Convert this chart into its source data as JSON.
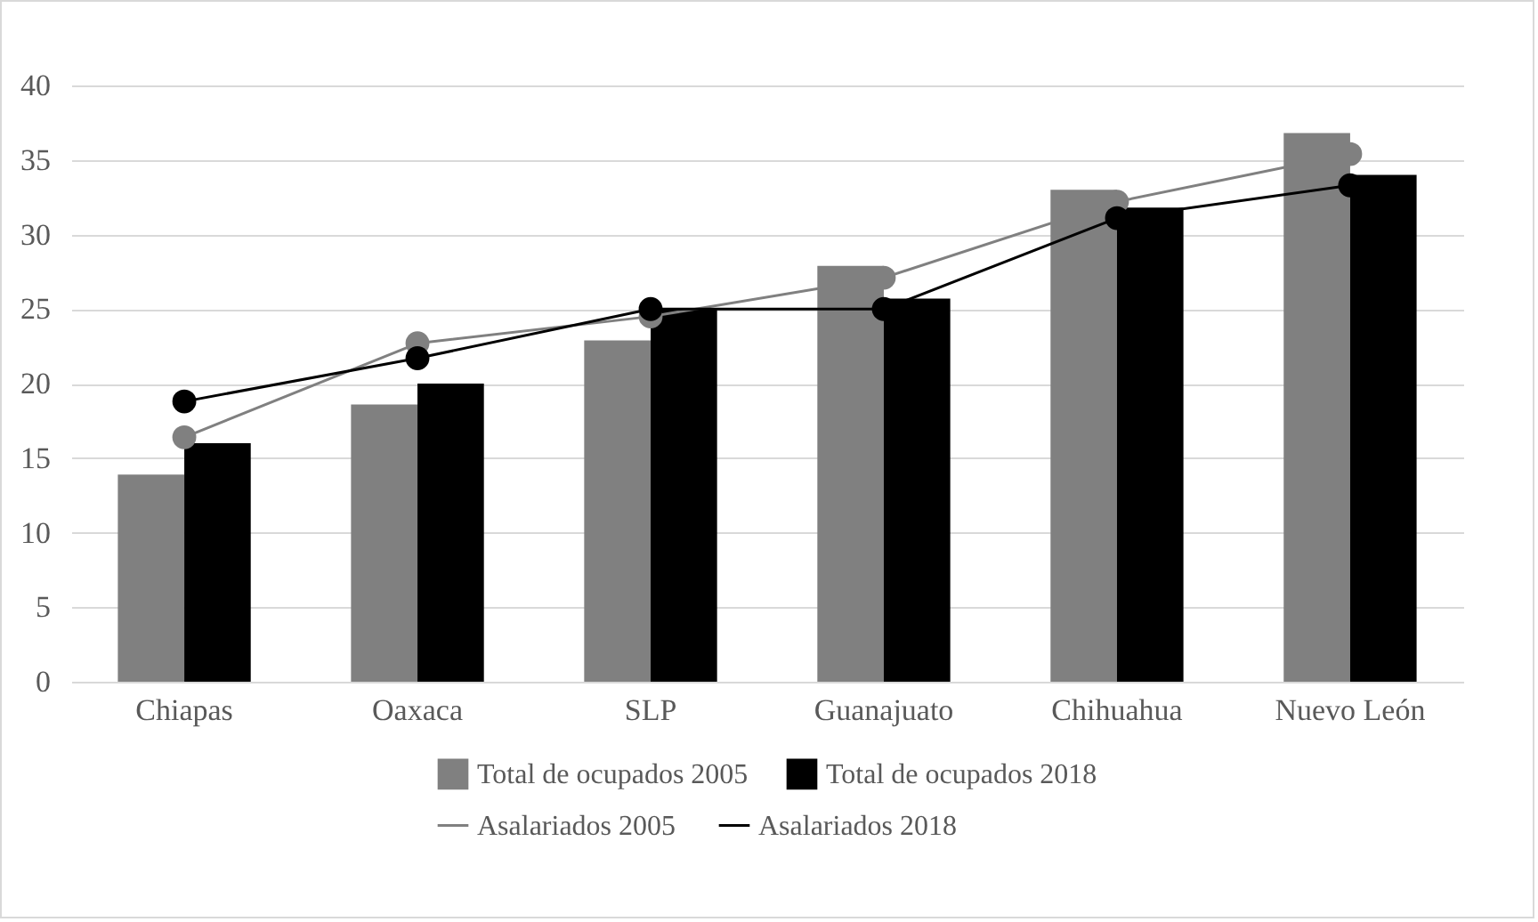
{
  "chart_data": {
    "type": "bar",
    "categories": [
      "Chiapas",
      "Oaxaca",
      "SLP",
      "Guanajuato",
      "Chihuahua",
      "Nuevo León"
    ],
    "series": [
      {
        "name": "Total de ocupados 2005",
        "color": "#808080",
        "values": [
          13.9,
          18.6,
          22.9,
          27.9,
          33.0,
          36.8
        ]
      },
      {
        "name": "Total de ocupados 2018",
        "color": "#000000",
        "values": [
          16.0,
          20.0,
          25.0,
          25.7,
          31.8,
          34.0
        ]
      },
      {
        "name": "Asalariados 2005",
        "type": "line",
        "color": "#808080",
        "values": [
          16.4,
          22.7,
          24.5,
          27.1,
          32.2,
          35.4
        ]
      },
      {
        "name": "Asalariados 2018",
        "type": "line",
        "color": "#000000",
        "values": [
          18.8,
          21.7,
          25.0,
          25.0,
          31.1,
          33.3
        ]
      }
    ],
    "ylim": [
      0,
      40
    ],
    "yticks": [
      0,
      5,
      10,
      15,
      20,
      25,
      30,
      35,
      40
    ],
    "grid": "y",
    "legend": "bottom",
    "marker": "circle"
  }
}
